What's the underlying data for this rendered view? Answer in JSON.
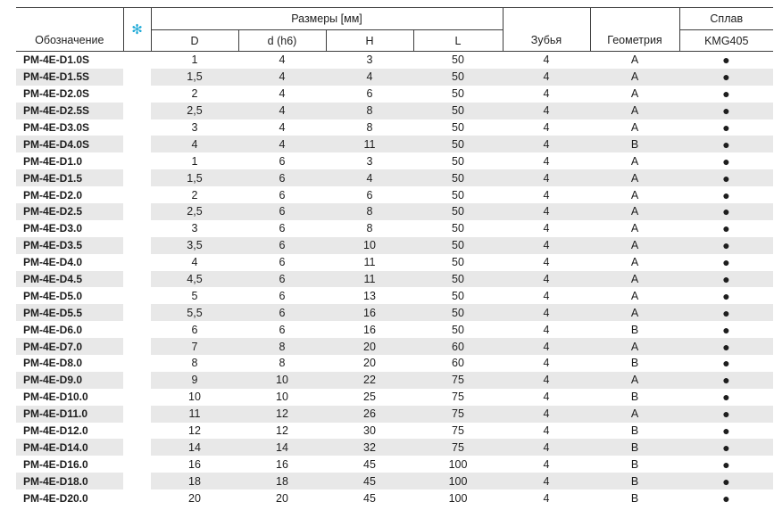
{
  "header": {
    "designation": "Обозначение",
    "star": "✻",
    "dimensions": "Размеры [мм]",
    "col_D": "D",
    "col_d": "d (h6)",
    "col_H": "H",
    "col_L": "L",
    "teeth": "Зубья",
    "geometry": "Геометрия",
    "alloy": "Сплав",
    "alloy_grade": "KMG405"
  },
  "dot_symbol": "●",
  "rows": [
    {
      "name": "PM-4E-D1.0S",
      "D": "1",
      "d": "4",
      "H": "3",
      "L": "50",
      "z": "4",
      "g": "A",
      "a": "●"
    },
    {
      "name": "PM-4E-D1.5S",
      "D": "1,5",
      "d": "4",
      "H": "4",
      "L": "50",
      "z": "4",
      "g": "A",
      "a": "●"
    },
    {
      "name": "PM-4E-D2.0S",
      "D": "2",
      "d": "4",
      "H": "6",
      "L": "50",
      "z": "4",
      "g": "A",
      "a": "●"
    },
    {
      "name": "PM-4E-D2.5S",
      "D": "2,5",
      "d": "4",
      "H": "8",
      "L": "50",
      "z": "4",
      "g": "A",
      "a": "●"
    },
    {
      "name": "PM-4E-D3.0S",
      "D": "3",
      "d": "4",
      "H": "8",
      "L": "50",
      "z": "4",
      "g": "A",
      "a": "●"
    },
    {
      "name": "PM-4E-D4.0S",
      "D": "4",
      "d": "4",
      "H": "11",
      "L": "50",
      "z": "4",
      "g": "B",
      "a": "●"
    },
    {
      "name": "PM-4E-D1.0",
      "D": "1",
      "d": "6",
      "H": "3",
      "L": "50",
      "z": "4",
      "g": "A",
      "a": "●"
    },
    {
      "name": "PM-4E-D1.5",
      "D": "1,5",
      "d": "6",
      "H": "4",
      "L": "50",
      "z": "4",
      "g": "A",
      "a": "●"
    },
    {
      "name": "PM-4E-D2.0",
      "D": "2",
      "d": "6",
      "H": "6",
      "L": "50",
      "z": "4",
      "g": "A",
      "a": "●"
    },
    {
      "name": "PM-4E-D2.5",
      "D": "2,5",
      "d": "6",
      "H": "8",
      "L": "50",
      "z": "4",
      "g": "A",
      "a": "●"
    },
    {
      "name": "PM-4E-D3.0",
      "D": "3",
      "d": "6",
      "H": "8",
      "L": "50",
      "z": "4",
      "g": "A",
      "a": "●"
    },
    {
      "name": "PM-4E-D3.5",
      "D": "3,5",
      "d": "6",
      "H": "10",
      "L": "50",
      "z": "4",
      "g": "A",
      "a": "●"
    },
    {
      "name": "PM-4E-D4.0",
      "D": "4",
      "d": "6",
      "H": "11",
      "L": "50",
      "z": "4",
      "g": "A",
      "a": "●"
    },
    {
      "name": "PM-4E-D4.5",
      "D": "4,5",
      "d": "6",
      "H": "11",
      "L": "50",
      "z": "4",
      "g": "A",
      "a": "●"
    },
    {
      "name": "PM-4E-D5.0",
      "D": "5",
      "d": "6",
      "H": "13",
      "L": "50",
      "z": "4",
      "g": "A",
      "a": "●"
    },
    {
      "name": "PM-4E-D5.5",
      "D": "5,5",
      "d": "6",
      "H": "16",
      "L": "50",
      "z": "4",
      "g": "A",
      "a": "●"
    },
    {
      "name": "PM-4E-D6.0",
      "D": "6",
      "d": "6",
      "H": "16",
      "L": "50",
      "z": "4",
      "g": "B",
      "a": "●"
    },
    {
      "name": "PM-4E-D7.0",
      "D": "7",
      "d": "8",
      "H": "20",
      "L": "60",
      "z": "4",
      "g": "A",
      "a": "●"
    },
    {
      "name": "PM-4E-D8.0",
      "D": "8",
      "d": "8",
      "H": "20",
      "L": "60",
      "z": "4",
      "g": "B",
      "a": "●"
    },
    {
      "name": "PM-4E-D9.0",
      "D": "9",
      "d": "10",
      "H": "22",
      "L": "75",
      "z": "4",
      "g": "A",
      "a": "●"
    },
    {
      "name": "PM-4E-D10.0",
      "D": "10",
      "d": "10",
      "H": "25",
      "L": "75",
      "z": "4",
      "g": "B",
      "a": "●"
    },
    {
      "name": "PM-4E-D11.0",
      "D": "11",
      "d": "12",
      "H": "26",
      "L": "75",
      "z": "4",
      "g": "A",
      "a": "●"
    },
    {
      "name": "PM-4E-D12.0",
      "D": "12",
      "d": "12",
      "H": "30",
      "L": "75",
      "z": "4",
      "g": "B",
      "a": "●"
    },
    {
      "name": "PM-4E-D14.0",
      "D": "14",
      "d": "14",
      "H": "32",
      "L": "75",
      "z": "4",
      "g": "B",
      "a": "●"
    },
    {
      "name": "PM-4E-D16.0",
      "D": "16",
      "d": "16",
      "H": "45",
      "L": "100",
      "z": "4",
      "g": "B",
      "a": "●"
    },
    {
      "name": "PM-4E-D18.0",
      "D": "18",
      "d": "18",
      "H": "45",
      "L": "100",
      "z": "4",
      "g": "B",
      "a": "●"
    },
    {
      "name": "PM-4E-D20.0",
      "D": "20",
      "d": "20",
      "H": "45",
      "L": "100",
      "z": "4",
      "g": "B",
      "a": "●"
    }
  ]
}
